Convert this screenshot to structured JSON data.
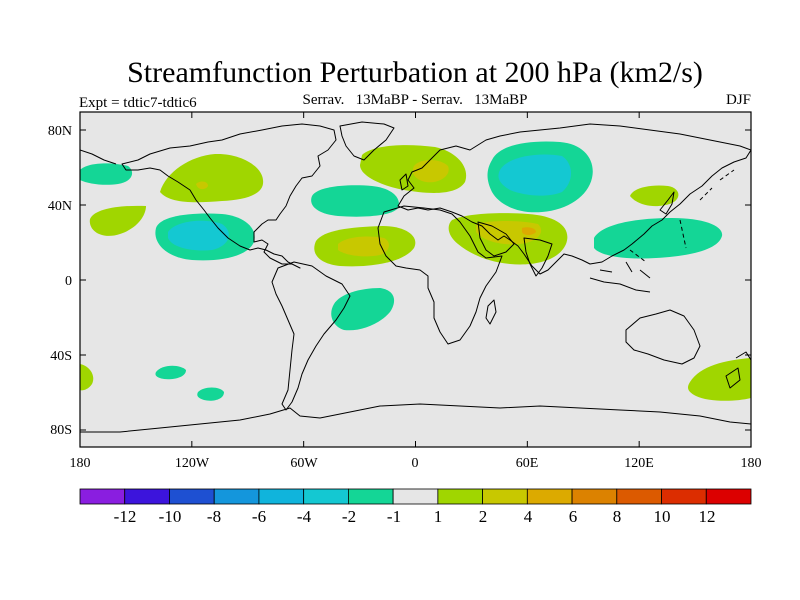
{
  "title": "Streamfunction Perturbation at 200 hPa (km2/s)",
  "left_subtitle": "Expt = tdtic7-tdtic6",
  "center_subtitle": "Serrav.   13MaBP - Serrav.   13MaBP",
  "right_subtitle": "DJF",
  "y_ticks": [
    "80N",
    "40N",
    "0",
    "40S",
    "80S"
  ],
  "x_ticks": [
    "180",
    "120W",
    "60W",
    "0",
    "60E",
    "120E",
    "180"
  ],
  "colorbar": {
    "labels": [
      "-12",
      "-10",
      "-8",
      "-6",
      "-4",
      "-2",
      "-1",
      "1",
      "2",
      "4",
      "6",
      "8",
      "10",
      "12"
    ],
    "colors": [
      "#8a1ee0",
      "#3c14dc",
      "#1e50d2",
      "#1496dc",
      "#10b4dc",
      "#14c8d2",
      "#14d696",
      "#e6e6e6",
      "#a0d600",
      "#c8c800",
      "#dcaa00",
      "#dc8200",
      "#dc5a00",
      "#dc2d00",
      "#dc0000"
    ]
  },
  "map": {
    "background_color": "#e6e6e6",
    "lon_range": [
      -180,
      180
    ],
    "lat_range": [
      -90,
      90
    ]
  }
}
